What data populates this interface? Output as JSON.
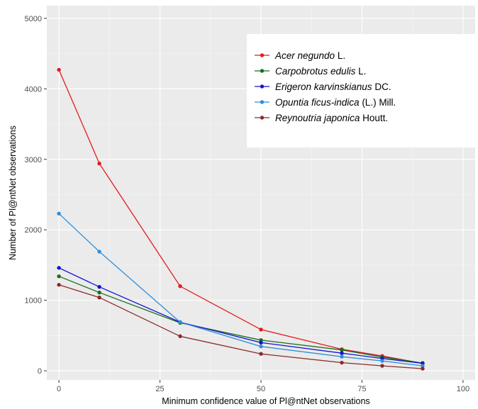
{
  "chart_data": {
    "type": "line",
    "title": "",
    "xlabel": "Minimum confidence value of Pl@ntNet observations",
    "ylabel": "Number of Pl@ntNet observations",
    "xlim": [
      -3,
      103
    ],
    "ylim": [
      -130,
      5180
    ],
    "x_ticks": [
      0,
      25,
      50,
      75,
      100
    ],
    "y_ticks": [
      0,
      1000,
      2000,
      3000,
      4000,
      5000
    ],
    "x_tick_labels": [
      "0",
      "25",
      "50",
      "75",
      "100"
    ],
    "y_tick_labels": [
      "0",
      "1000",
      "2000",
      "3000",
      "4000",
      "5000"
    ],
    "grid": true,
    "legend_position": "top-right",
    "x": [
      0,
      10,
      30,
      50,
      70,
      80,
      90
    ],
    "series": [
      {
        "name": "Acer negundo L.",
        "name_italic": "Acer negundo",
        "name_rest": " L.",
        "color": "#e31a1c",
        "values": [
          4270,
          2940,
          1200,
          585,
          305,
          210,
          105
        ]
      },
      {
        "name": "Carpobrotus edulis L.",
        "name_italic": "Carpobrotus edulis",
        "name_rest": " L.",
        "color": "#1a6e1a",
        "values": [
          1340,
          1110,
          680,
          435,
          295,
          195,
          110
        ]
      },
      {
        "name": "Erigeron karvinskianus DC.",
        "name_italic": "Erigeron karvinskianus",
        "name_rest": " DC.",
        "color": "#1414d2",
        "values": [
          1460,
          1190,
          690,
          400,
          250,
          175,
          105
        ]
      },
      {
        "name": "Opuntia ficus-indica (L.) Mill.",
        "name_italic": "Opuntia ficus-indica",
        "name_rest": " (L.) Mill.",
        "color": "#2e8fdb",
        "values": [
          2230,
          1690,
          690,
          345,
          200,
          140,
          70
        ]
      },
      {
        "name": "Reynoutria japonica Houtt.",
        "name_italic": "Reynoutria japonica",
        "name_rest": " Houtt.",
        "color": "#8b2a2a",
        "values": [
          1220,
          1040,
          490,
          240,
          115,
          70,
          30
        ]
      }
    ]
  }
}
